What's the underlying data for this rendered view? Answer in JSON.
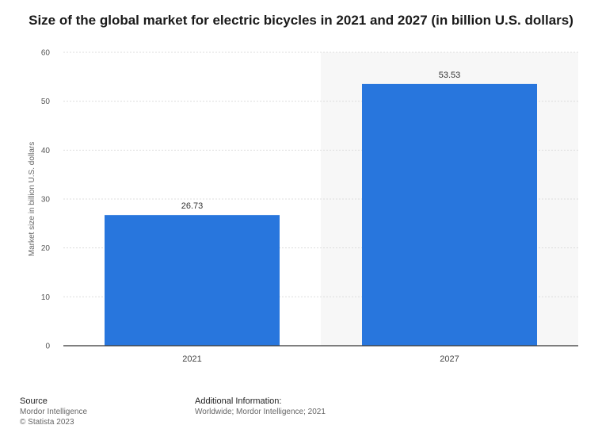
{
  "chart_data": {
    "type": "bar",
    "title": "Size of the global market for electric bicycles in 2021 and 2027 (in billion U.S. dollars)",
    "categories": [
      "2021",
      "2027"
    ],
    "values": [
      26.73,
      53.53
    ],
    "value_labels": [
      "26.73",
      "53.53"
    ],
    "xlabel": "",
    "ylabel": "Market size in billion U.S. dollars",
    "ylim": [
      0,
      60
    ],
    "yticks": [
      0,
      10,
      20,
      30,
      40,
      50,
      60
    ],
    "grid": true,
    "legend": "none",
    "highlight_category": "2027",
    "colors": {
      "bar": "#2876dd",
      "grid": "#dddddd",
      "axis": "#333333",
      "highlight_band": "#f7f7f7"
    }
  },
  "footer": {
    "source_heading": "Source",
    "source_name": "Mordor Intelligence",
    "copyright": "© Statista 2023",
    "info_heading": "Additional Information:",
    "info_text": "Worldwide; Mordor Intelligence; 2021"
  }
}
